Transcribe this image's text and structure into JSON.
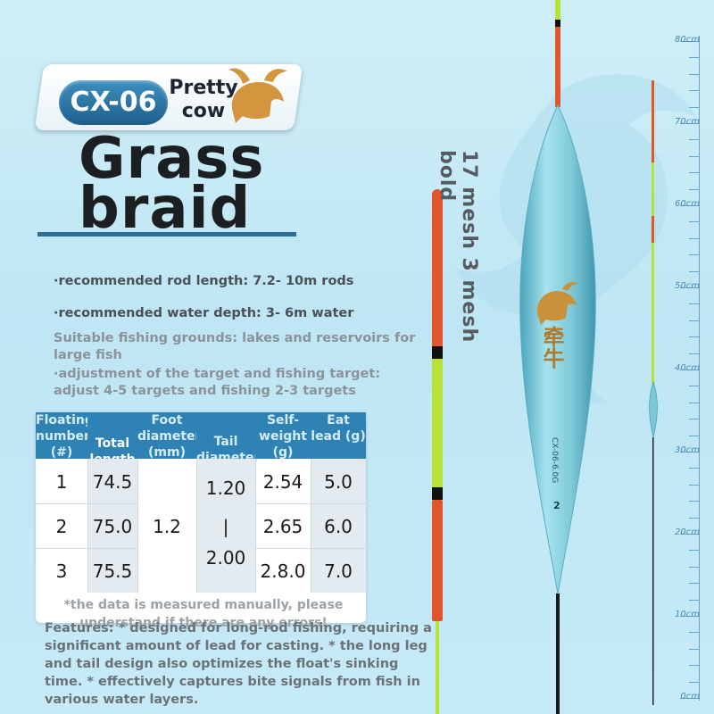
{
  "badge": {
    "code": "CX-06",
    "name": "Pretty cow"
  },
  "title": {
    "line1": "Grass",
    "line2": "braid"
  },
  "side_label": "17 mesh 3 mesh bold",
  "info": {
    "rod_length": "·recommended rod length: 7.2- 10m rods",
    "water_depth": "·recommended water depth: 3- 6m water",
    "grounds": "Suitable fishing grounds: lakes and reservoirs for large fish",
    "adjustment": "·adjustment of the target and fishing target: adjust 4-5 targets and fishing 2-3 targets"
  },
  "table": {
    "headers": {
      "floating": "Floating number (#)",
      "total": "Total length",
      "foot": "Foot diameter (mm)",
      "tail": "Tail diameter (mm)",
      "weight": "Self-weight (g)",
      "lead": "Eat lead (g)"
    },
    "rows": [
      {
        "num": "1",
        "length": "74.5",
        "weight": "2.54",
        "lead": "5.0"
      },
      {
        "num": "2",
        "length": "75.0",
        "weight": "2.65",
        "lead": "6.0"
      },
      {
        "num": "3",
        "length": "75.5",
        "weight": "2.8.0",
        "lead": "7.0"
      }
    ],
    "foot_diameter": "1.2",
    "tail_diameter": {
      "top": "1.20",
      "sep": "|",
      "bottom": "2.00"
    },
    "note": "*the data is measured manually, please understand if there are any errors!"
  },
  "features": "Features: * designed for long-rod fishing, requiring a significant amount of lead for casting. * the long leg and tail design also optimizes the float's sinking time. * effectively captures bite signals from fish in various water layers.",
  "float_marks": {
    "text": "CX-06-6.0G",
    "number": "2",
    "brand": "牵牛"
  },
  "ruler": {
    "labels": [
      "80cm",
      "70cm",
      "60cm",
      "50cm",
      "40cm",
      "30cm",
      "20cm",
      "10cm",
      "0cm"
    ],
    "values": [
      80,
      70,
      60,
      50,
      40,
      30,
      20,
      10,
      0
    ]
  },
  "colors": {
    "accent_blue": "#2f83b4",
    "float_body": "#7cc7d6",
    "float_red": "#e2562c",
    "float_green": "#b6e23a"
  }
}
